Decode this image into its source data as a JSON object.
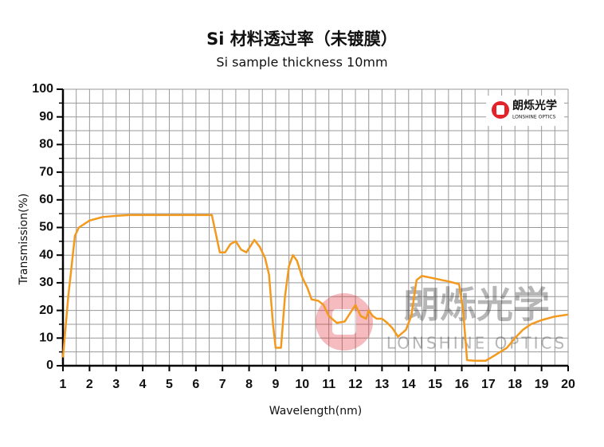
{
  "chart_data": {
    "type": "line",
    "title": "Si 材料透过率（未镀膜）",
    "subtitle": "Si sample thickness 10mm",
    "xlabel": "Wavelength(nm)",
    "ylabel": "Transmission(%)",
    "logo": {
      "name": "朗烁光学",
      "subtitle": "LONSHINE OPTICS"
    },
    "xlim": [
      1,
      20
    ],
    "ylim": [
      0,
      100
    ],
    "xticks": [
      1,
      2,
      3,
      4,
      5,
      6,
      7,
      8,
      9,
      10,
      11,
      12,
      13,
      14,
      15,
      16,
      17,
      18,
      19,
      20
    ],
    "yticks": [
      0,
      10,
      20,
      30,
      40,
      50,
      60,
      70,
      80,
      90,
      100
    ],
    "grid": true,
    "x": [
      1.0,
      1.2,
      1.45,
      1.6,
      2.0,
      2.5,
      3.0,
      3.5,
      4,
      5,
      6,
      6.6,
      6.9,
      7.1,
      7.3,
      7.5,
      7.7,
      7.9,
      8.1,
      8.2,
      8.4,
      8.6,
      8.75,
      8.9,
      9.0,
      9.2,
      9.35,
      9.5,
      9.65,
      9.8,
      10.0,
      10.2,
      10.35,
      10.6,
      10.8,
      11.0,
      11.3,
      11.6,
      11.8,
      12.0,
      12.2,
      12.4,
      12.5,
      12.65,
      12.8,
      13.0,
      13.2,
      13.4,
      13.6,
      13.9,
      14.1,
      14.3,
      14.5,
      15,
      15.5,
      15.9,
      16.05,
      16.2,
      16.5,
      16.9,
      17.2,
      17.7,
      18.0,
      18.3,
      18.6,
      19.0,
      19.5,
      20
    ],
    "series": [
      {
        "name": "Si",
        "color": "#f39a1e",
        "values": [
          3,
          25,
          47,
          50,
          52.5,
          53.8,
          54.2,
          54.5,
          54.5,
          54.5,
          54.5,
          54.5,
          41,
          41,
          44,
          45,
          42,
          41,
          44,
          45.5,
          43,
          39,
          33,
          15,
          6.5,
          6.5,
          25,
          36,
          40,
          38,
          32,
          28,
          24,
          23.5,
          22,
          18,
          15.5,
          16,
          19,
          22,
          18,
          17,
          20,
          18,
          17,
          17,
          15.5,
          13.5,
          10.5,
          13,
          18,
          31,
          32.5,
          31.5,
          30.5,
          29.5,
          20,
          2,
          1.8,
          1.8,
          3.5,
          6.5,
          10,
          13,
          15,
          16.5,
          17.8,
          18.5
        ]
      }
    ]
  }
}
